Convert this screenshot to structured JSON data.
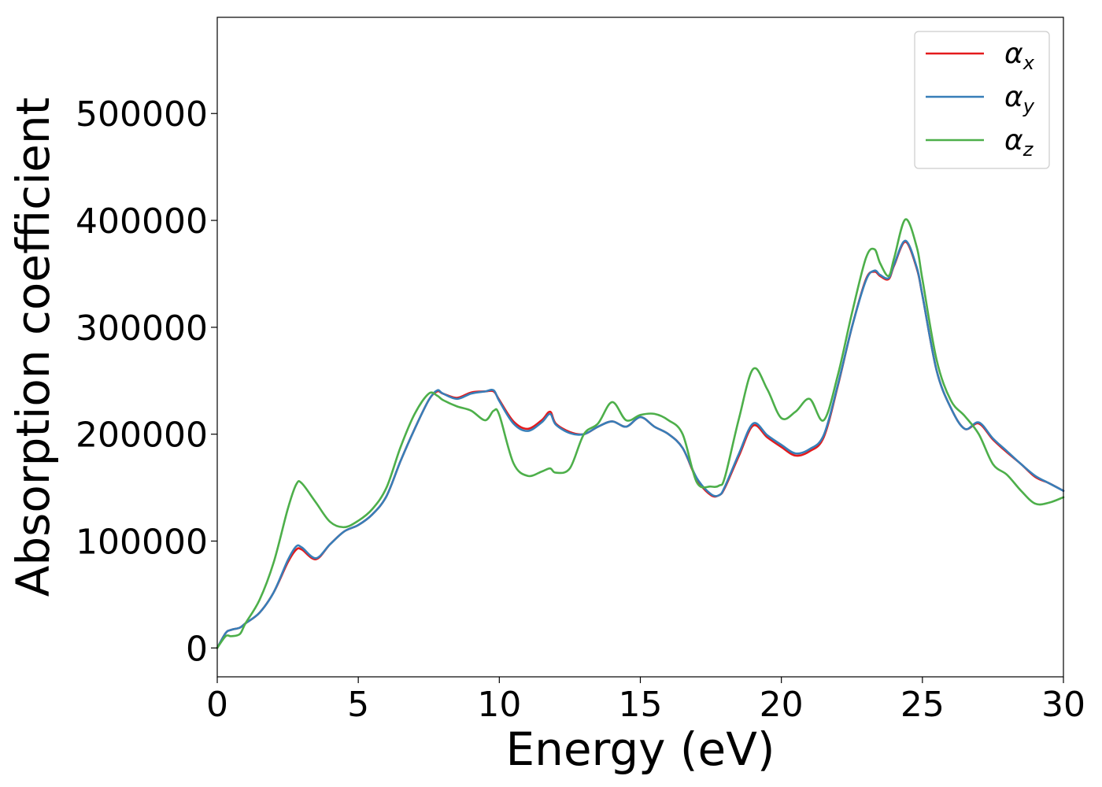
{
  "chart_data": {
    "type": "line",
    "title": "",
    "xlabel": "Energy (eV)",
    "ylabel": "Absorption coefficient",
    "xlim": [
      0,
      30
    ],
    "ylim": [
      -27000,
      590000
    ],
    "xticks": [
      0,
      5,
      10,
      15,
      20,
      25,
      30
    ],
    "xtick_labels": [
      "0",
      "5",
      "10",
      "15",
      "20",
      "25",
      "30"
    ],
    "yticks": [
      0,
      100000,
      200000,
      300000,
      400000,
      500000
    ],
    "ytick_labels": [
      "0",
      "100000",
      "200000",
      "300000",
      "400000",
      "500000"
    ],
    "grid": false,
    "legend_position": "top-right",
    "series": [
      {
        "name": "α",
        "subscript": "x",
        "color": "#e41a1c",
        "x": [
          0,
          0.3,
          0.5,
          0.8,
          1.0,
          1.5,
          2.0,
          2.5,
          2.8,
          3.0,
          3.5,
          4.0,
          4.5,
          5.0,
          5.5,
          6.0,
          6.5,
          7.0,
          7.5,
          7.8,
          8.0,
          8.5,
          9.0,
          9.5,
          9.8,
          10.0,
          10.5,
          11.0,
          11.5,
          11.8,
          12.0,
          12.5,
          13.0,
          13.5,
          14.0,
          14.5,
          15.0,
          15.5,
          16.0,
          16.5,
          17.0,
          17.5,
          17.8,
          18.0,
          18.5,
          19.0,
          19.5,
          20.0,
          20.5,
          21.0,
          21.5,
          22.0,
          22.5,
          23.0,
          23.3,
          23.5,
          23.8,
          24.0,
          24.4,
          24.8,
          25.0,
          25.5,
          26.0,
          26.5,
          27.0,
          27.5,
          28.0,
          28.5,
          29.0,
          29.5,
          30.0
        ],
        "values": [
          0,
          14000,
          17000,
          19000,
          23000,
          33000,
          52000,
          80000,
          92000,
          92000,
          83000,
          97000,
          109000,
          115000,
          125000,
          142000,
          175000,
          205000,
          232000,
          240000,
          238000,
          234000,
          239000,
          240000,
          240000,
          232000,
          212000,
          205000,
          213000,
          221000,
          210000,
          202000,
          200000,
          207000,
          212000,
          207000,
          216000,
          207000,
          200000,
          187000,
          158000,
          143000,
          143000,
          150000,
          180000,
          208000,
          197000,
          188000,
          180000,
          184000,
          197000,
          245000,
          300000,
          345000,
          352000,
          348000,
          345000,
          358000,
          380000,
          355000,
          330000,
          260000,
          225000,
          205000,
          210000,
          195000,
          183000,
          172000,
          160000,
          154000,
          147000
        ]
      },
      {
        "name": "α",
        "subscript": "y",
        "color": "#377eb8",
        "x": [
          0,
          0.3,
          0.5,
          0.8,
          1.0,
          1.5,
          2.0,
          2.5,
          2.8,
          3.0,
          3.5,
          4.0,
          4.5,
          5.0,
          5.5,
          6.0,
          6.5,
          7.0,
          7.5,
          7.8,
          8.0,
          8.5,
          9.0,
          9.5,
          9.8,
          10.0,
          10.5,
          11.0,
          11.5,
          11.8,
          12.0,
          12.5,
          13.0,
          13.5,
          14.0,
          14.5,
          15.0,
          15.5,
          16.0,
          16.5,
          17.0,
          17.5,
          17.8,
          18.0,
          18.5,
          19.0,
          19.5,
          20.0,
          20.5,
          21.0,
          21.5,
          22.0,
          22.5,
          23.0,
          23.3,
          23.5,
          23.8,
          24.0,
          24.4,
          24.8,
          25.0,
          25.5,
          26.0,
          26.5,
          27.0,
          27.5,
          28.0,
          28.5,
          29.0,
          29.5,
          30.0
        ],
        "values": [
          0,
          14000,
          17000,
          19000,
          23000,
          33000,
          52000,
          82000,
          95000,
          94000,
          84000,
          97000,
          109000,
          115000,
          125000,
          142000,
          175000,
          205000,
          232000,
          241000,
          238000,
          233000,
          238000,
          240000,
          241000,
          231000,
          210000,
          203000,
          211000,
          219000,
          209000,
          201000,
          200000,
          207000,
          212000,
          207000,
          216000,
          207000,
          200000,
          187000,
          159000,
          144000,
          143000,
          151000,
          182000,
          210000,
          199000,
          190000,
          182000,
          186000,
          199000,
          246000,
          300000,
          344000,
          353000,
          349000,
          346000,
          359000,
          381000,
          356000,
          330000,
          260000,
          225000,
          205000,
          211000,
          196000,
          184000,
          172000,
          161000,
          154000,
          147000
        ]
      },
      {
        "name": "α",
        "subscript": "z",
        "color": "#4daf4a",
        "x": [
          0,
          0.3,
          0.5,
          0.8,
          1.0,
          1.5,
          2.0,
          2.5,
          2.8,
          3.0,
          3.5,
          4.0,
          4.5,
          5.0,
          5.5,
          6.0,
          6.5,
          7.0,
          7.5,
          7.8,
          8.0,
          8.5,
          9.0,
          9.5,
          9.8,
          10.0,
          10.5,
          11.0,
          11.5,
          11.8,
          12.0,
          12.5,
          13.0,
          13.5,
          14.0,
          14.5,
          15.0,
          15.5,
          16.0,
          16.5,
          17.0,
          17.5,
          17.8,
          18.0,
          18.5,
          19.0,
          19.5,
          20.0,
          20.5,
          21.0,
          21.5,
          22.0,
          22.5,
          23.0,
          23.3,
          23.5,
          23.8,
          24.0,
          24.4,
          24.8,
          25.0,
          25.5,
          26.0,
          26.5,
          27.0,
          27.5,
          28.0,
          28.5,
          29.0,
          29.5,
          30.0
        ],
        "values": [
          0,
          11000,
          11000,
          13000,
          23000,
          45000,
          80000,
          130000,
          153000,
          154000,
          136000,
          118000,
          113000,
          119000,
          130000,
          150000,
          188000,
          219000,
          238000,
          236000,
          232000,
          226000,
          222000,
          213000,
          222000,
          218000,
          173000,
          161000,
          165000,
          168000,
          164000,
          168000,
          200000,
          210000,
          230000,
          213000,
          218000,
          219000,
          213000,
          200000,
          155000,
          151000,
          152000,
          160000,
          215000,
          261000,
          242000,
          215000,
          221000,
          233000,
          213000,
          255000,
          313000,
          365000,
          373000,
          360000,
          348000,
          365000,
          401000,
          375000,
          345000,
          270000,
          232000,
          217000,
          200000,
          172000,
          162000,
          147000,
          135000,
          136000,
          141000
        ]
      }
    ]
  }
}
